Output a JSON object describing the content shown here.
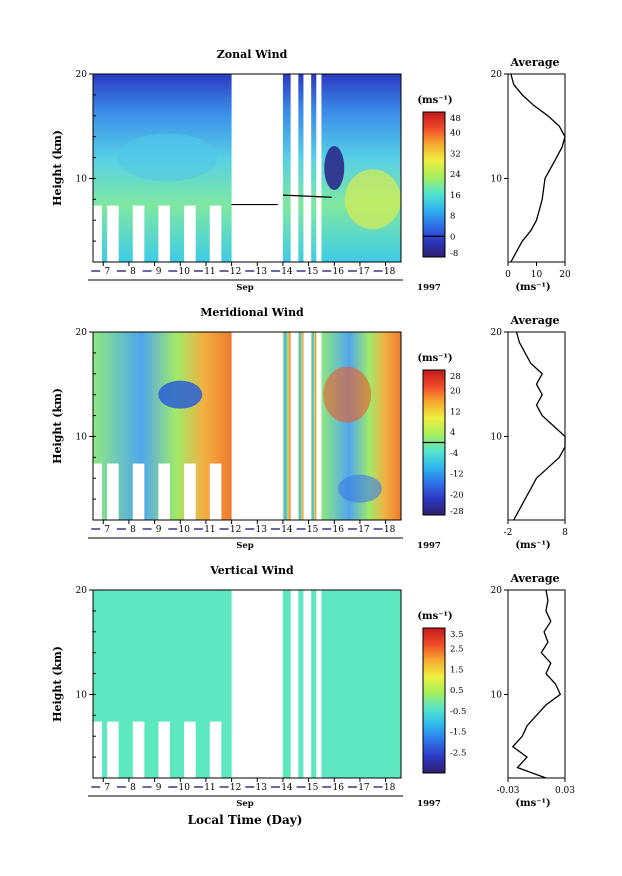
{
  "figure": {
    "xlabel": "Local Time (Day)",
    "month": "Sep",
    "year": "1997",
    "ylabel": "Height (km)",
    "unit": "(ms⁻¹)",
    "profile_title": "Average"
  },
  "days": [
    "7",
    "8",
    "9",
    "10",
    "11",
    "12",
    "13",
    "14",
    "15",
    "16",
    "17",
    "18"
  ],
  "y_ticks": [
    "20",
    "10"
  ],
  "colors": {
    "stops": [
      "#2e1f6e",
      "#2b38c2",
      "#2f74e8",
      "#2fb8ee",
      "#56e6c8",
      "#a8ee5a",
      "#eef040",
      "#f6a930",
      "#ef4a2a",
      "#c21a1a"
    ],
    "contour": "#000000",
    "axis": "#000000",
    "gap": "#ffffff"
  },
  "chart_data": [
    {
      "type": "heatmap",
      "title": "Zonal Wind",
      "ylabel": "Height (km)",
      "xlabel": "",
      "ylim": [
        2,
        20
      ],
      "xlim": [
        6.6,
        18.6
      ],
      "colorbar": {
        "unit": "(ms⁻¹)",
        "ticks": [
          "48",
          "40",
          "32",
          "24",
          "16",
          "8",
          "0",
          "-8"
        ],
        "min": -8,
        "max": 48,
        "zero_line": 0
      },
      "profile": {
        "title": "Average",
        "xticks": [
          "0",
          "10",
          "20"
        ],
        "xlim": [
          0,
          20
        ],
        "unit": "(ms⁻¹)",
        "height": [
          2,
          3,
          4,
          5,
          6,
          7,
          8,
          9,
          10,
          11,
          12,
          13,
          14,
          15,
          16,
          17,
          18,
          19,
          20
        ],
        "value": [
          1,
          3,
          5,
          8,
          10,
          11,
          12,
          12.5,
          13,
          15,
          17,
          19,
          20,
          18,
          14,
          9,
          5,
          2,
          1
        ]
      }
    },
    {
      "type": "heatmap",
      "title": "Meridional Wind",
      "ylabel": "Height (km)",
      "xlabel": "",
      "ylim": [
        2,
        20
      ],
      "xlim": [
        6.6,
        18.6
      ],
      "colorbar": {
        "unit": "(ms⁻¹)",
        "ticks": [
          "28",
          "20",
          "12",
          "4",
          "-4",
          "-12",
          "-20",
          "-28"
        ],
        "min": -28,
        "max": 28,
        "zero_line": 0
      },
      "profile": {
        "title": "Average",
        "xticks": [
          "-2",
          "",
          "8"
        ],
        "xlim": [
          -2,
          8
        ],
        "unit": "(ms⁻¹)",
        "height": [
          2,
          3,
          4,
          5,
          6,
          7,
          8,
          9,
          10,
          11,
          12,
          13,
          14,
          15,
          16,
          17,
          18,
          19,
          20
        ],
        "value": [
          -1,
          0,
          1,
          2,
          3,
          5,
          7,
          8,
          8,
          6,
          4,
          3,
          4,
          3,
          4,
          2,
          1,
          0,
          -0.5
        ]
      }
    },
    {
      "type": "heatmap",
      "title": "Vertical Wind",
      "ylabel": "Height (km)",
      "xlabel": "Local Time (Day)",
      "ylim": [
        2,
        20
      ],
      "xlim": [
        6.6,
        18.6
      ],
      "colorbar": {
        "unit": "(ms⁻¹)",
        "ticks": [
          "3.5",
          "2.5",
          "1.5",
          "0.5",
          "-0.5",
          "-1.5",
          "-2.5"
        ],
        "min": -3.5,
        "max": 3.5
      },
      "profile": {
        "title": "Average",
        "xticks": [
          "-0.03",
          "0.03"
        ],
        "xlim": [
          -0.03,
          0.03
        ],
        "unit": "(ms⁻¹)",
        "height": [
          2,
          3,
          4,
          5,
          6,
          7,
          8,
          9,
          10,
          11,
          12,
          13,
          14,
          15,
          16,
          17,
          18,
          19,
          20
        ],
        "value": [
          0.01,
          -0.02,
          -0.01,
          -0.025,
          -0.015,
          -0.01,
          0.0,
          0.01,
          0.025,
          0.02,
          0.01,
          0.015,
          0.005,
          0.012,
          0.008,
          0.015,
          0.01,
          0.012,
          0.01
        ]
      }
    }
  ]
}
